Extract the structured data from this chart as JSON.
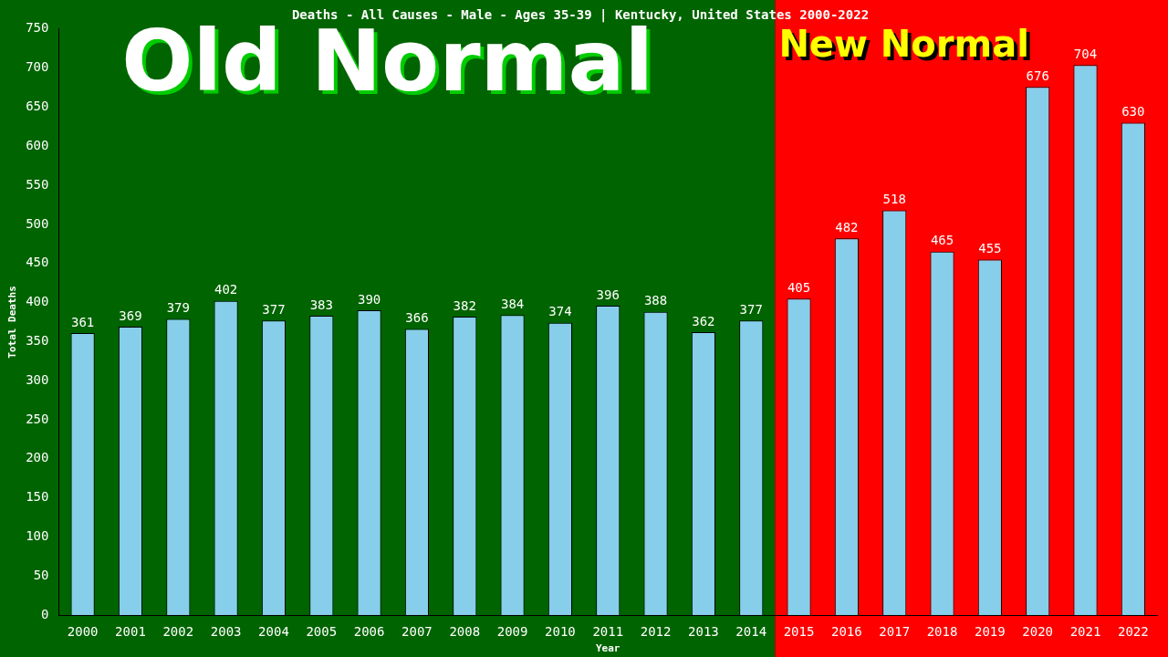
{
  "chart_data": {
    "type": "bar",
    "title": "Deaths - All Causes - Male - Ages 35-39 | Kentucky, United States 2000-2022",
    "xlabel": "Year",
    "ylabel": "Total Deaths",
    "categories": [
      "2000",
      "2001",
      "2002",
      "2003",
      "2004",
      "2005",
      "2006",
      "2007",
      "2008",
      "2009",
      "2010",
      "2011",
      "2012",
      "2013",
      "2014",
      "2015",
      "2016",
      "2017",
      "2018",
      "2019",
      "2020",
      "2021",
      "2022"
    ],
    "values": [
      361,
      369,
      379,
      402,
      377,
      383,
      390,
      366,
      382,
      384,
      374,
      396,
      388,
      362,
      377,
      405,
      482,
      518,
      465,
      455,
      676,
      704,
      630
    ],
    "color": "#87ceeb",
    "ylim": [
      0,
      750
    ],
    "yticks": [
      0,
      50,
      100,
      150,
      200,
      250,
      300,
      350,
      400,
      450,
      500,
      550,
      600,
      650,
      700,
      750
    ],
    "data_labels": true,
    "grid": false,
    "legend": false,
    "bands": [
      {
        "axis": "x",
        "from": "2000",
        "to": "2014",
        "label": "Old Normal",
        "color": "#006400"
      },
      {
        "axis": "x",
        "from": "2015",
        "to": "2022",
        "label": "New Normal",
        "color": "#ff0000"
      }
    ]
  }
}
